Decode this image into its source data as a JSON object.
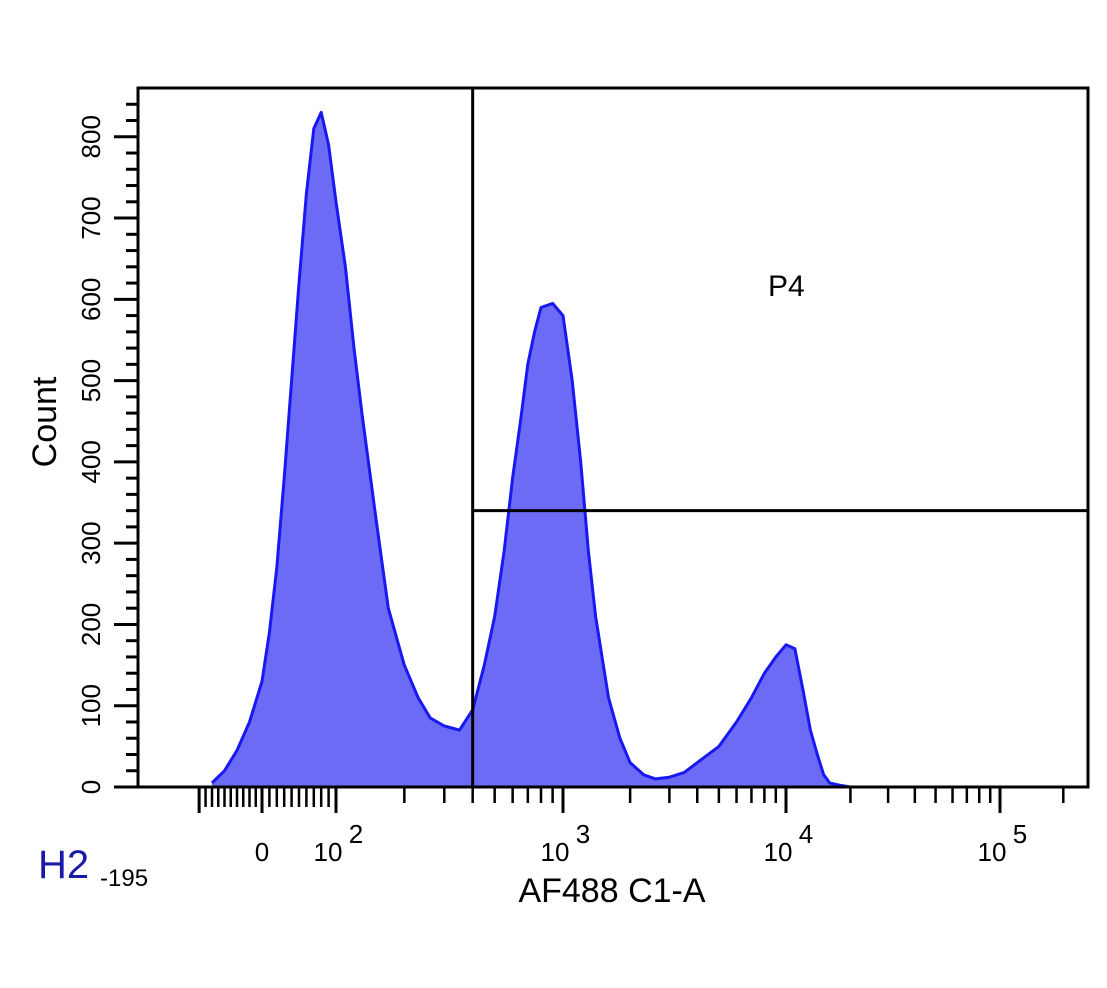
{
  "panel": {
    "label": "H2",
    "sublabel": "-195"
  },
  "chart_data": {
    "type": "area",
    "xlabel": "AF488 C1-A",
    "ylabel": "Count",
    "x_scale": "biexponential",
    "xlim": [
      -195,
      262144
    ],
    "ylim": [
      0,
      860
    ],
    "x_tick_labels": [
      {
        "value": 0,
        "label": "0"
      },
      {
        "value": 100,
        "base": "10",
        "exp": "2"
      },
      {
        "value": 1000,
        "base": "10",
        "exp": "3"
      },
      {
        "value": 10000,
        "base": "10",
        "exp": "4"
      },
      {
        "value": 100000,
        "base": "10",
        "exp": "5"
      }
    ],
    "y_ticks": [
      0,
      100,
      200,
      300,
      400,
      500,
      600,
      700,
      800
    ],
    "gate": {
      "name": "P4",
      "x_min": 400,
      "x_max": 262144,
      "count_threshold": 340
    },
    "colors": {
      "fill": "#6b6bf5",
      "outline": "#1818f0",
      "axis": "#000000"
    },
    "series": [
      {
        "x": [
          -80,
          -60,
          -40,
          -20,
          0,
          10,
          20,
          30,
          40,
          50,
          60,
          70,
          80,
          90,
          100,
          110,
          120,
          130,
          150,
          170,
          200,
          230,
          260,
          300,
          350,
          400,
          450,
          500,
          550,
          600,
          650,
          700,
          750,
          800,
          900,
          1000,
          1100,
          1200,
          1300,
          1400,
          1600,
          1800,
          2000,
          2300,
          2600,
          3000,
          3500,
          4000,
          5000,
          6000,
          7000,
          8000,
          9000,
          10000,
          11000,
          12000,
          13000,
          14000,
          15000,
          16000,
          18000,
          20000
        ],
        "y": [
          5,
          20,
          45,
          80,
          130,
          190,
          270,
          380,
          500,
          620,
          730,
          810,
          830,
          790,
          720,
          640,
          540,
          460,
          330,
          220,
          150,
          110,
          85,
          75,
          70,
          95,
          150,
          210,
          290,
          380,
          450,
          520,
          560,
          590,
          595,
          580,
          500,
          400,
          290,
          210,
          110,
          60,
          30,
          15,
          10,
          12,
          18,
          30,
          50,
          80,
          110,
          140,
          160,
          175,
          170,
          120,
          70,
          40,
          15,
          5,
          2,
          0
        ]
      }
    ]
  }
}
